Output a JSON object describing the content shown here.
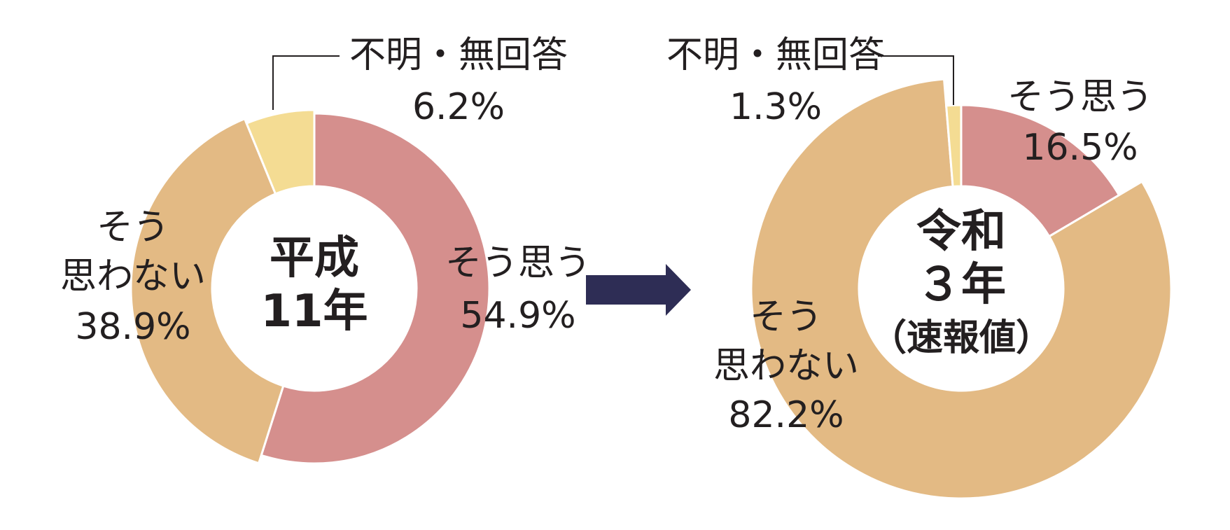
{
  "colors": {
    "agree": "#d58f8d",
    "disagree": "#e3ba84",
    "unknown": "#f4dc93",
    "arrow": "#2e2d55",
    "leader": "#231f20"
  },
  "chart_data": [
    {
      "type": "pie",
      "center_label": [
        "平成",
        "11年"
      ],
      "slices": [
        {
          "label": [
            "そう思う"
          ],
          "value": 54.9,
          "value_text": "54.9%",
          "color_key": "agree"
        },
        {
          "label": [
            "そう",
            "思わない"
          ],
          "value": 38.9,
          "value_text": "38.9%",
          "color_key": "disagree"
        },
        {
          "label": [
            "不明・無回答"
          ],
          "value": 6.2,
          "value_text": "6.2%",
          "color_key": "unknown"
        }
      ]
    },
    {
      "type": "pie",
      "center_label": [
        "令和",
        "３年",
        "（速報値）"
      ],
      "slices": [
        {
          "label": [
            "そう思う"
          ],
          "value": 16.5,
          "value_text": "16.5%",
          "color_key": "agree"
        },
        {
          "label": [
            "そう",
            "思わない"
          ],
          "value": 82.2,
          "value_text": "82.2%",
          "color_key": "disagree"
        },
        {
          "label": [
            "不明・無回答"
          ],
          "value": 1.3,
          "value_text": "1.3%",
          "color_key": "unknown"
        }
      ]
    }
  ]
}
